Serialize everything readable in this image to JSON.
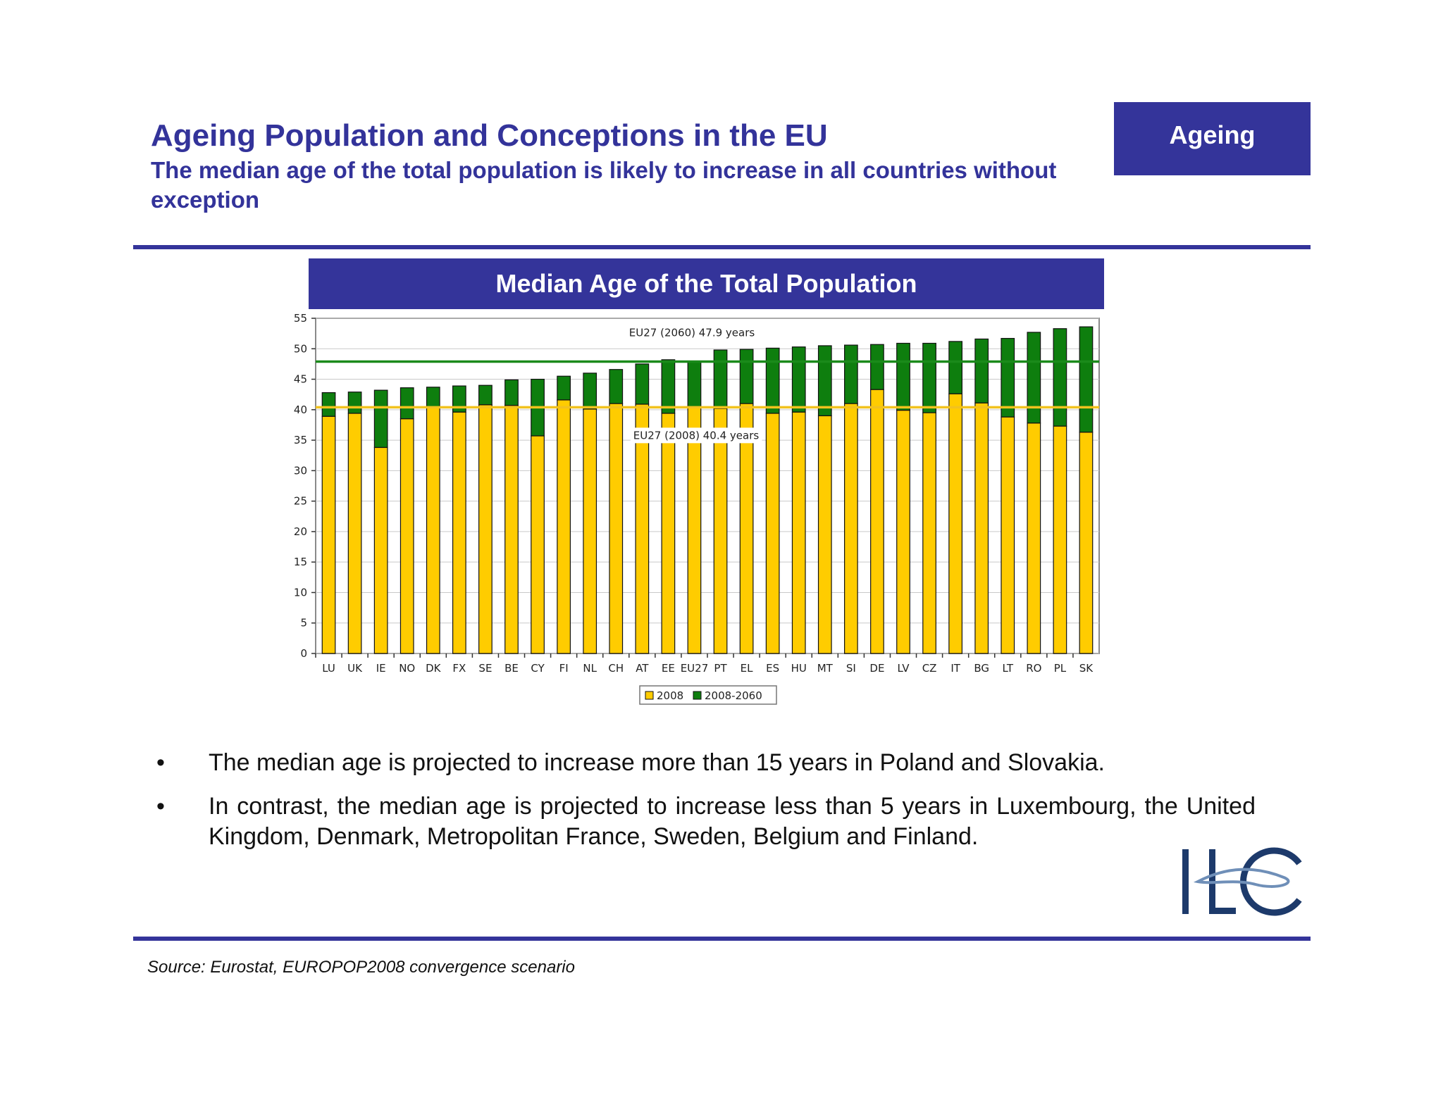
{
  "header": {
    "title": "Ageing Population and Conceptions in the EU",
    "subtitle": "The median age of the total population is likely to increase in all countries without exception",
    "tag": "Ageing"
  },
  "chart_header": "Median Age of the Total Population",
  "chart_data": {
    "type": "bar",
    "stacked": true,
    "title": "Median Age of the Total Population",
    "categories": [
      "LU",
      "UK",
      "IE",
      "NO",
      "DK",
      "FX",
      "SE",
      "BE",
      "CY",
      "FI",
      "NL",
      "CH",
      "AT",
      "EE",
      "EU27",
      "PT",
      "EL",
      "ES",
      "HU",
      "MT",
      "SI",
      "DE",
      "LV",
      "CZ",
      "IT",
      "BG",
      "LT",
      "RO",
      "PL",
      "SK"
    ],
    "series": [
      {
        "name": "2008",
        "color": "#ffcc00",
        "values": [
          38.9,
          39.4,
          33.8,
          38.5,
          40.4,
          39.6,
          40.8,
          40.7,
          35.7,
          41.6,
          40.1,
          41.0,
          40.9,
          39.4,
          40.4,
          40.2,
          41.0,
          39.4,
          39.6,
          39.0,
          41.0,
          43.3,
          39.9,
          39.5,
          42.6,
          41.1,
          38.8,
          37.8,
          37.3,
          36.3
        ]
      },
      {
        "name": "2008-2060",
        "color": "#0e7e0e",
        "values": [
          3.9,
          3.5,
          9.4,
          5.1,
          3.3,
          4.3,
          3.2,
          4.2,
          9.3,
          3.9,
          5.9,
          5.6,
          6.6,
          8.8,
          7.5,
          9.6,
          8.9,
          10.7,
          10.7,
          11.5,
          9.6,
          7.4,
          11.0,
          11.4,
          8.6,
          10.5,
          12.9,
          14.9,
          16.0,
          17.3
        ]
      }
    ],
    "reference_lines": [
      {
        "label": "EU27 (2060) 47.9 years",
        "value": 47.9,
        "color": "#1a8a1a"
      },
      {
        "label": "EU27 (2008) 40.4 years",
        "value": 40.4,
        "color": "#f2c21e"
      }
    ],
    "ylim": [
      0,
      55
    ],
    "yticks": [
      0,
      5,
      10,
      15,
      20,
      25,
      30,
      35,
      40,
      45,
      50,
      55
    ],
    "xlabel": "",
    "ylabel": "",
    "grid": true,
    "legend": "bottom-center"
  },
  "bullets": [
    "The median age is projected to increase more than 15 years in Poland and Slovakia.",
    "In contrast, the median age is projected to increase less than 5 years in Luxembourg, the United Kingdom, Denmark, Metropolitan France, Sweden, Belgium and Finland."
  ],
  "bullet_symbol": "•",
  "logo_text": "ILC",
  "source": "Source: Eurostat, EUROPOP2008 convergence scenario",
  "colors": {
    "brand": "#34349a",
    "logo": "#1d3a6b"
  }
}
